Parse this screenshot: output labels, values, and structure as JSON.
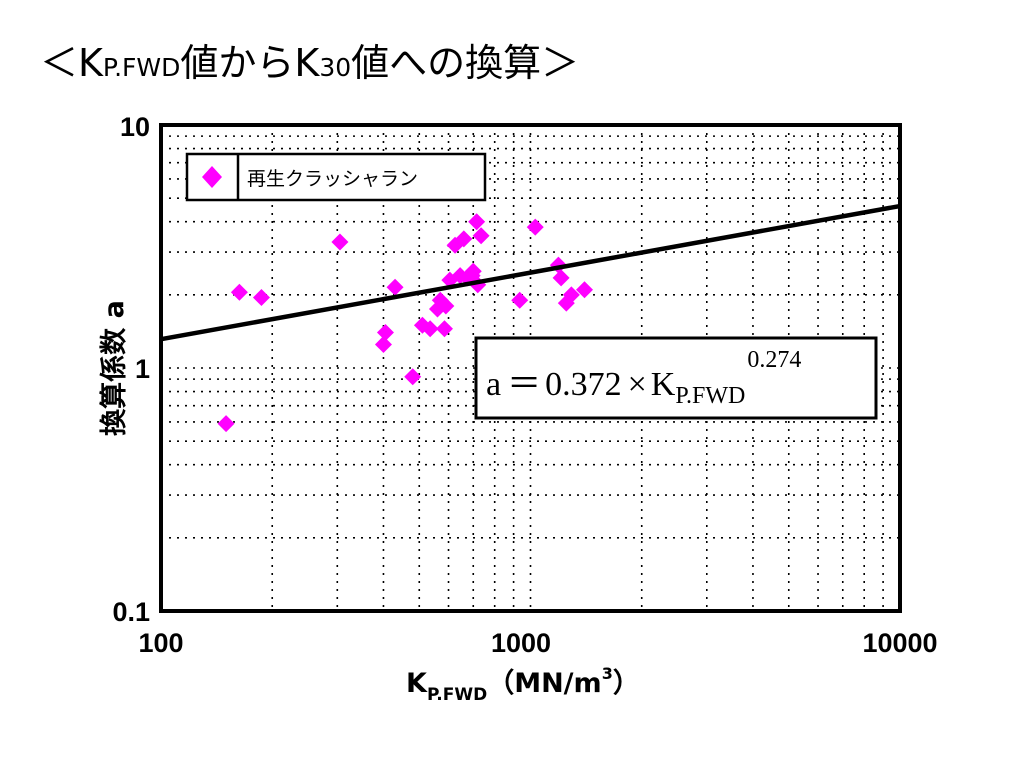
{
  "title": {
    "prefix": "＜K",
    "sub1": "P.FWD",
    "middle": "値からK",
    "sub2": "30",
    "suffix": "値への換算＞"
  },
  "chart_data": {
    "type": "scatter",
    "xscale": "log",
    "yscale": "log",
    "xlim": [
      100,
      10000
    ],
    "ylim": [
      0.1,
      10
    ],
    "grid": true,
    "legend_position": "top-left",
    "x_ticks": [
      "100",
      "1000",
      "10000"
    ],
    "y_ticks": [
      "0.1",
      "1",
      "10"
    ],
    "xlabel": {
      "main": "K",
      "sub": "P.FWD",
      "unit": "（MN/m",
      "sup": "3",
      "close": "）"
    },
    "ylabel": "換算係数 a",
    "series": [
      {
        "name": "再生クラッシャラン",
        "color": "#ff00ff",
        "marker": "diamond",
        "x": [
          150,
          163,
          187,
          305,
          400,
          405,
          430,
          480,
          510,
          535,
          560,
          570,
          585,
          590,
          605,
          625,
          645,
          660,
          675,
          695,
          700,
          715,
          720,
          735,
          935,
          1030,
          1190,
          1210,
          1250,
          1290,
          1400
        ],
        "y": [
          0.59,
          2.05,
          1.95,
          3.3,
          1.25,
          1.4,
          2.15,
          0.92,
          1.5,
          1.45,
          1.75,
          1.9,
          1.45,
          1.8,
          2.3,
          3.2,
          2.4,
          3.4,
          2.35,
          2.4,
          2.5,
          4.0,
          2.2,
          3.5,
          1.9,
          3.8,
          2.65,
          2.35,
          1.85,
          2.0,
          2.1
        ]
      }
    ],
    "fit_line": {
      "coefficient": 0.372,
      "exponent": 0.274,
      "color": "#000000",
      "label": {
        "lhs": "a",
        "eq": "＝",
        "coef": "0.372",
        "times": "×",
        "var": "K",
        "sub": "P.FWD",
        "exp": "0.274"
      }
    }
  }
}
